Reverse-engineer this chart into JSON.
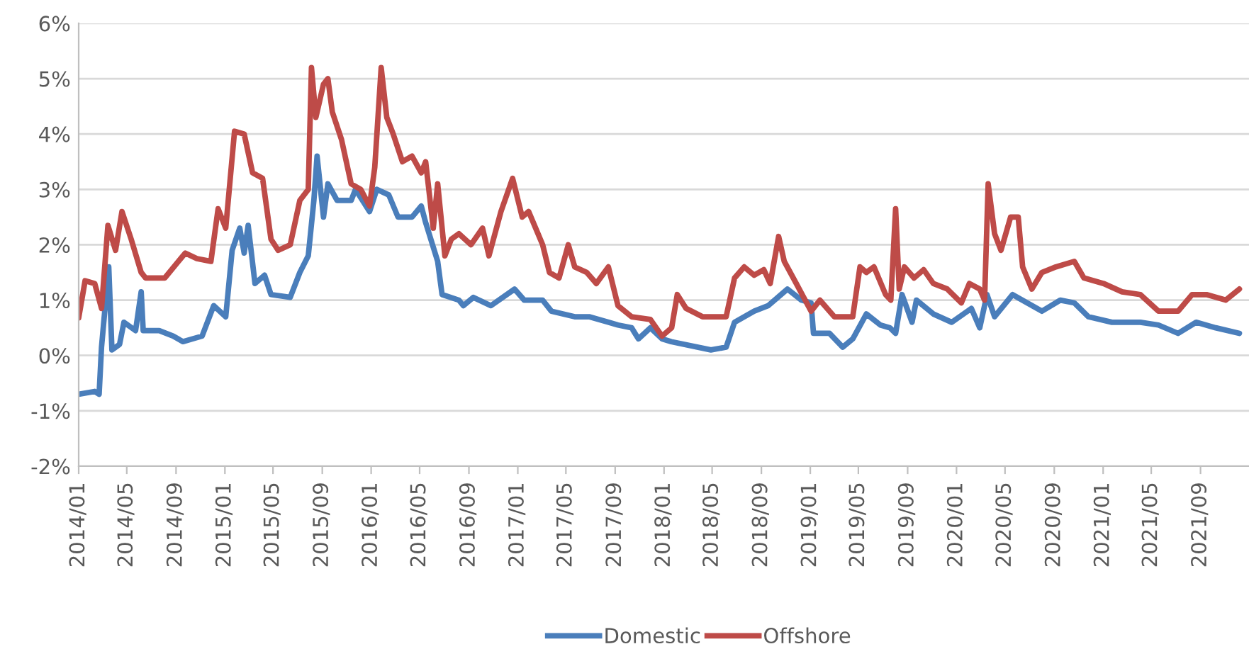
{
  "chart_data": {
    "type": "line",
    "xlim": [
      "2014-01-01",
      "2021-12-31"
    ],
    "xticks": [
      {
        "value": "2014-01",
        "label": "2014/01"
      },
      {
        "value": "2014-05",
        "label": "2014/05"
      },
      {
        "value": "2014-09",
        "label": "2014/09"
      },
      {
        "value": "2015-01",
        "label": "2015/01"
      },
      {
        "value": "2015-05",
        "label": "2015/05"
      },
      {
        "value": "2015-09",
        "label": "2015/09"
      },
      {
        "value": "2016-01",
        "label": "2016/01"
      },
      {
        "value": "2016-05",
        "label": "2016/05"
      },
      {
        "value": "2016-09",
        "label": "2016/09"
      },
      {
        "value": "2017-01",
        "label": "2017/01"
      },
      {
        "value": "2017-05",
        "label": "2017/05"
      },
      {
        "value": "2017-09",
        "label": "2017/09"
      },
      {
        "value": "2018-01",
        "label": "2018/01"
      },
      {
        "value": "2018-05",
        "label": "2018/05"
      },
      {
        "value": "2018-09",
        "label": "2018/09"
      },
      {
        "value": "2019-01",
        "label": "2019/01"
      },
      {
        "value": "2019-05",
        "label": "2019/05"
      },
      {
        "value": "2019-09",
        "label": "2019/09"
      },
      {
        "value": "2020-01",
        "label": "2020/01"
      },
      {
        "value": "2020-05",
        "label": "2020/05"
      },
      {
        "value": "2020-09",
        "label": "2020/09"
      },
      {
        "value": "2021-01",
        "label": "2021/01"
      },
      {
        "value": "2021-05",
        "label": "2021/05"
      },
      {
        "value": "2021-09",
        "label": "2021/09"
      }
    ],
    "ylim": [
      -2,
      6
    ],
    "yticks": [
      {
        "value": -2,
        "label": "-2%"
      },
      {
        "value": -1,
        "label": "-1%"
      },
      {
        "value": 0,
        "label": "0%"
      },
      {
        "value": 1,
        "label": "1%"
      },
      {
        "value": 2,
        "label": "2%"
      },
      {
        "value": 3,
        "label": "3%"
      },
      {
        "value": 4,
        "label": "4%"
      },
      {
        "value": 5,
        "label": "5%"
      },
      {
        "value": 6,
        "label": "6%"
      }
    ],
    "grid": "y",
    "legend": "bottom",
    "marker": "none",
    "line_style": "solid",
    "series": [
      {
        "name": "Domestic",
        "color": "#4a7ebb",
        "x": [
          "2014-01-01",
          "2014-02-10",
          "2014-02-21",
          "2014-02-27",
          "2014-03-17",
          "2014-03-25",
          "2014-04-13",
          "2014-04-24",
          "2014-05-23",
          "2014-06-06",
          "2014-06-11",
          "2014-07-21",
          "2014-08-25",
          "2014-09-18",
          "2014-11-05",
          "2014-12-04",
          "2015-01-03",
          "2015-01-19",
          "2015-02-07",
          "2015-02-18",
          "2015-02-28",
          "2015-03-17",
          "2015-04-10",
          "2015-04-26",
          "2015-06-13",
          "2015-07-07",
          "2015-07-28",
          "2015-08-11",
          "2015-08-19",
          "2015-09-04",
          "2015-09-15",
          "2015-10-08",
          "2015-11-12",
          "2015-11-23",
          "2015-12-28",
          "2016-01-15",
          "2016-02-14",
          "2016-03-08",
          "2016-04-12",
          "2016-05-05",
          "2016-05-16",
          "2016-06-15",
          "2016-06-26",
          "2016-08-07",
          "2016-08-18",
          "2016-09-12",
          "2016-10-26",
          "2016-12-24",
          "2017-01-17",
          "2017-03-04",
          "2017-03-26",
          "2017-05-23",
          "2017-06-28",
          "2017-08-15",
          "2017-09-08",
          "2017-10-12",
          "2017-10-29",
          "2017-11-28",
          "2017-12-27",
          "2018-01-19",
          "2018-04-28",
          "2018-06-05",
          "2018-06-26",
          "2018-08-14",
          "2018-09-18",
          "2018-11-05",
          "2018-12-10",
          "2019-01-03",
          "2019-01-09",
          "2019-02-18",
          "2019-03-23",
          "2019-04-17",
          "2019-05-21",
          "2019-06-25",
          "2019-07-19",
          "2019-08-02",
          "2019-08-18",
          "2019-09-12",
          "2019-09-23",
          "2019-11-04",
          "2019-12-20",
          "2020-02-07",
          "2020-02-28",
          "2020-03-17",
          "2020-04-05",
          "2020-05-20",
          "2020-06-25",
          "2020-08-01",
          "2020-09-16",
          "2020-10-21",
          "2020-11-25",
          "2021-01-23",
          "2021-04-04",
          "2021-05-19",
          "2021-07-07",
          "2021-08-21",
          "2021-10-09",
          "2021-12-07"
        ],
        "values": [
          -0.7,
          -0.65,
          -0.7,
          0.15,
          1.6,
          0.1,
          0.2,
          0.6,
          0.45,
          1.15,
          0.45,
          0.45,
          0.35,
          0.25,
          0.35,
          0.9,
          0.7,
          1.9,
          2.3,
          1.85,
          2.35,
          1.3,
          1.45,
          1.1,
          1.05,
          1.5,
          1.8,
          2.8,
          3.6,
          2.5,
          3.1,
          2.8,
          2.8,
          3.0,
          2.6,
          3.0,
          2.9,
          2.5,
          2.5,
          2.7,
          2.4,
          1.7,
          1.1,
          1.0,
          0.9,
          1.05,
          0.9,
          1.2,
          1.0,
          1.0,
          0.8,
          0.7,
          0.7,
          0.6,
          0.55,
          0.5,
          0.3,
          0.5,
          0.3,
          0.25,
          0.1,
          0.15,
          0.6,
          0.8,
          0.9,
          1.2,
          1.0,
          0.95,
          0.4,
          0.4,
          0.15,
          0.3,
          0.75,
          0.55,
          0.5,
          0.4,
          1.1,
          0.6,
          1.0,
          0.75,
          0.6,
          0.85,
          0.5,
          1.1,
          0.7,
          1.1,
          0.95,
          0.8,
          1.0,
          0.95,
          0.7,
          0.6,
          0.6,
          0.55,
          0.4,
          0.6,
          0.5,
          0.4
        ]
      },
      {
        "name": "Offshore",
        "color": "#be4b48",
        "x": [
          "2014-01-01",
          "2014-01-17",
          "2014-02-10",
          "2014-02-27",
          "2014-03-15",
          "2014-04-03",
          "2014-04-19",
          "2014-05-12",
          "2014-06-06",
          "2014-06-17",
          "2014-08-04",
          "2014-09-24",
          "2014-10-23",
          "2014-11-27",
          "2014-12-15",
          "2015-01-03",
          "2015-01-25",
          "2015-02-18",
          "2015-03-11",
          "2015-04-05",
          "2015-04-26",
          "2015-05-14",
          "2015-06-13",
          "2015-07-07",
          "2015-07-28",
          "2015-08-05",
          "2015-08-16",
          "2015-09-04",
          "2015-09-15",
          "2015-09-26",
          "2015-10-19",
          "2015-11-12",
          "2015-12-06",
          "2015-12-28",
          "2016-01-10",
          "2016-01-26",
          "2016-02-09",
          "2016-02-25",
          "2016-03-19",
          "2016-04-12",
          "2016-05-05",
          "2016-05-16",
          "2016-06-04",
          "2016-06-15",
          "2016-07-03",
          "2016-07-19",
          "2016-08-07",
          "2016-09-06",
          "2016-10-05",
          "2016-10-21",
          "2016-11-20",
          "2016-12-19",
          "2017-01-12",
          "2017-01-28",
          "2017-03-04",
          "2017-03-21",
          "2017-04-14",
          "2017-05-07",
          "2017-05-23",
          "2017-06-22",
          "2017-07-16",
          "2017-08-15",
          "2017-09-08",
          "2017-10-12",
          "2017-11-28",
          "2017-12-27",
          "2018-01-20",
          "2018-02-03",
          "2018-02-25",
          "2018-04-07",
          "2018-06-05",
          "2018-06-26",
          "2018-07-20",
          "2018-08-14",
          "2018-09-07",
          "2018-09-23",
          "2018-10-14",
          "2018-10-28",
          "2018-11-27",
          "2019-01-03",
          "2019-01-25",
          "2019-03-02",
          "2019-04-17",
          "2019-05-05",
          "2019-05-21",
          "2019-06-09",
          "2019-07-08",
          "2019-07-21",
          "2019-08-02",
          "2019-08-11",
          "2019-08-24",
          "2019-09-17",
          "2019-10-11",
          "2019-11-04",
          "2019-12-09",
          "2020-01-13",
          "2020-02-02",
          "2020-02-28",
          "2020-03-11",
          "2020-03-20",
          "2020-04-05",
          "2020-04-21",
          "2020-05-15",
          "2020-06-03",
          "2020-06-14",
          "2020-07-07",
          "2020-08-01",
          "2020-09-05",
          "2020-10-21",
          "2020-11-14",
          "2021-01-02",
          "2021-02-17",
          "2021-04-04",
          "2021-05-19",
          "2021-07-07",
          "2021-08-11",
          "2021-09-16",
          "2021-11-03",
          "2021-12-07"
        ],
        "values": [
          0.68,
          1.35,
          1.3,
          0.85,
          2.35,
          1.9,
          2.6,
          2.1,
          1.5,
          1.4,
          1.4,
          1.85,
          1.75,
          1.7,
          2.65,
          2.3,
          4.05,
          4.0,
          3.3,
          3.2,
          2.1,
          1.9,
          2.0,
          2.8,
          3.0,
          5.2,
          4.3,
          4.9,
          5.0,
          4.4,
          3.9,
          3.1,
          3.0,
          2.7,
          3.4,
          5.2,
          4.3,
          4.0,
          3.5,
          3.6,
          3.3,
          3.5,
          2.3,
          3.1,
          1.8,
          2.1,
          2.2,
          2.0,
          2.3,
          1.8,
          2.6,
          3.2,
          2.5,
          2.6,
          2.0,
          1.5,
          1.4,
          2.0,
          1.6,
          1.5,
          1.3,
          1.6,
          0.9,
          0.7,
          0.65,
          0.35,
          0.5,
          1.1,
          0.85,
          0.7,
          0.7,
          1.4,
          1.6,
          1.45,
          1.55,
          1.3,
          2.15,
          1.7,
          1.3,
          0.8,
          1.0,
          0.7,
          0.7,
          1.6,
          1.5,
          1.6,
          1.1,
          1.0,
          2.65,
          1.2,
          1.6,
          1.4,
          1.55,
          1.3,
          1.2,
          0.95,
          1.3,
          1.2,
          1.0,
          3.1,
          2.2,
          1.9,
          2.5,
          2.5,
          1.6,
          1.2,
          1.5,
          1.6,
          1.7,
          1.4,
          1.3,
          1.15,
          1.1,
          0.8,
          0.8,
          1.1,
          1.1,
          1.0,
          1.2
        ]
      }
    ]
  }
}
